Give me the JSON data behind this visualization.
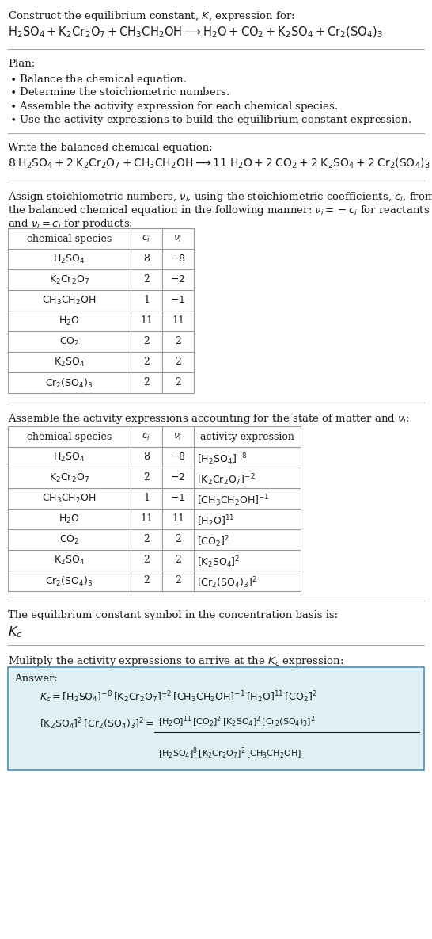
{
  "bg_color": "#ffffff",
  "text_color": "#1a1a1a",
  "title_line1": "Construct the equilibrium constant, $K$, expression for:",
  "reaction_unbalanced": "$\\mathrm{H_2SO_4 + K_2Cr_2O_7 + CH_3CH_2OH \\longrightarrow H_2O + CO_2 + K_2SO_4 + Cr_2(SO_4)_3}$",
  "plan_header": "Plan:",
  "plan_items": [
    "$\\bullet$ Balance the chemical equation.",
    "$\\bullet$ Determine the stoichiometric numbers.",
    "$\\bullet$ Assemble the activity expression for each chemical species.",
    "$\\bullet$ Use the activity expressions to build the equilibrium constant expression."
  ],
  "balanced_header": "Write the balanced chemical equation:",
  "balanced_eq": "$\\mathrm{8\\;H_2SO_4 + 2\\;K_2Cr_2O_7 + CH_3CH_2OH \\longrightarrow 11\\;H_2O + 2\\;CO_2 + 2\\;K_2SO_4 + 2\\;Cr_2(SO_4)_3}$",
  "stoich_text1": "Assign stoichiometric numbers, $\\nu_i$, using the stoichiometric coefficients, $c_i$, from",
  "stoich_text2": "the balanced chemical equation in the following manner: $\\nu_i = -c_i$ for reactants",
  "stoich_text3": "and $\\nu_i = c_i$ for products:",
  "table1_header": [
    "chemical species",
    "$c_i$",
    "$\\nu_i$"
  ],
  "table1_rows": [
    [
      "$\\mathrm{H_2SO_4}$",
      "8",
      "$-8$"
    ],
    [
      "$\\mathrm{K_2Cr_2O_7}$",
      "2",
      "$-2$"
    ],
    [
      "$\\mathrm{CH_3CH_2OH}$",
      "1",
      "$-1$"
    ],
    [
      "$\\mathrm{H_2O}$",
      "11",
      "11"
    ],
    [
      "$\\mathrm{CO_2}$",
      "2",
      "2"
    ],
    [
      "$\\mathrm{K_2SO_4}$",
      "2",
      "2"
    ],
    [
      "$\\mathrm{Cr_2(SO_4)_3}$",
      "2",
      "2"
    ]
  ],
  "activity_header": "Assemble the activity expressions accounting for the state of matter and $\\nu_i$:",
  "table2_header": [
    "chemical species",
    "$c_i$",
    "$\\nu_i$",
    "activity expression"
  ],
  "table2_rows": [
    [
      "$\\mathrm{H_2SO_4}$",
      "8",
      "$-8$",
      "$[\\mathrm{H_2SO_4}]^{-8}$"
    ],
    [
      "$\\mathrm{K_2Cr_2O_7}$",
      "2",
      "$-2$",
      "$[\\mathrm{K_2Cr_2O_7}]^{-2}$"
    ],
    [
      "$\\mathrm{CH_3CH_2OH}$",
      "1",
      "$-1$",
      "$[\\mathrm{CH_3CH_2OH}]^{-1}$"
    ],
    [
      "$\\mathrm{H_2O}$",
      "11",
      "11",
      "$[\\mathrm{H_2O}]^{11}$"
    ],
    [
      "$\\mathrm{CO_2}$",
      "2",
      "2",
      "$[\\mathrm{CO_2}]^{2}$"
    ],
    [
      "$\\mathrm{K_2SO_4}$",
      "2",
      "2",
      "$[\\mathrm{K_2SO_4}]^{2}$"
    ],
    [
      "$\\mathrm{Cr_2(SO_4)_3}$",
      "2",
      "2",
      "$[\\mathrm{Cr_2(SO_4)_3}]^{2}$"
    ]
  ],
  "kc_header": "The equilibrium constant symbol in the concentration basis is:",
  "kc_symbol": "$K_c$",
  "multiply_header": "Mulitply the activity expressions to arrive at the $K_c$ expression:",
  "answer_label": "Answer:",
  "answer_line1": "$K_c = [\\mathrm{H_2SO_4}]^{-8}\\,[\\mathrm{K_2Cr_2O_7}]^{-2}\\,[\\mathrm{CH_3CH_2OH}]^{-1}\\,[\\mathrm{H_2O}]^{11}\\,[\\mathrm{CO_2}]^{2}$",
  "answer_line2a": "$[\\mathrm{K_2SO_4}]^{2}\\,[\\mathrm{Cr_2(SO_4)_3}]^{2} = $",
  "answer_frac_num": "$[\\mathrm{H_2O}]^{11}\\,[\\mathrm{CO_2}]^{2}\\,[\\mathrm{K_2SO_4}]^{2}\\,[\\mathrm{Cr_2(SO_4)_3}]^{2}$",
  "answer_frac_den": "$[\\mathrm{H_2SO_4}]^{8}\\,[\\mathrm{K_2Cr_2O_7}]^{2}\\,[\\mathrm{CH_3CH_2OH}]$",
  "answer_bg": "#dff0f7",
  "answer_border": "#4a90b8",
  "line_color": "#aaaaaa",
  "table_line_color": "#999999",
  "font_size": 9.5,
  "font_size_table": 9.0
}
